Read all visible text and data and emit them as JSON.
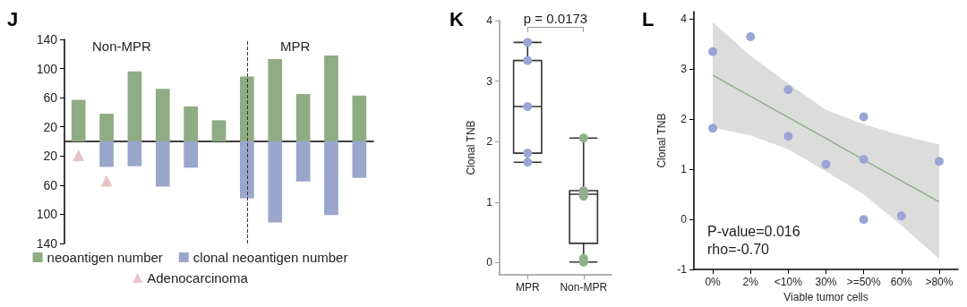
{
  "chart_data": [
    {
      "type": "bar",
      "title": "J",
      "categories": [
        null,
        null,
        null,
        null,
        null,
        null,
        null,
        null,
        null,
        null,
        null
      ],
      "stacked": true,
      "series": [
        {
          "name": "neoantigen number",
          "color": "#8fac84",
          "values": [
            57,
            38,
            96,
            72,
            48,
            29,
            89,
            113,
            65,
            118,
            63
          ]
        },
        {
          "name": "clonal neoantigen number",
          "color": "#9ba6cc",
          "values": [
            null,
            -35,
            -34,
            -62,
            -36,
            null,
            -78,
            -111,
            -55,
            -101,
            -50
          ]
        },
        {
          "name": "Adenocarcinoma",
          "type": "scatter",
          "color": "#e8c4c6",
          "values": [
            -19,
            -54,
            null,
            null,
            null,
            null,
            null,
            null,
            null,
            null,
            null
          ]
        }
      ],
      "ylim": [
        -140,
        140
      ],
      "yticks": [
        {
          "value": -140,
          "label": "140"
        },
        {
          "value": -100,
          "label": "100"
        },
        {
          "value": -60,
          "label": "60"
        },
        {
          "value": -20,
          "label": "20"
        },
        20,
        60,
        100,
        140
      ],
      "annotations": [
        "Non-MPR",
        "MPR"
      ],
      "legend": "bottom",
      "marker": "triangle",
      "grid": false
    },
    {
      "type": "box",
      "title": "K",
      "ylabel": "Clonal TNB",
      "categories": [
        "MPR",
        "Non-MPR"
      ],
      "boxes": [
        {
          "low": 1.66,
          "q1": 1.81,
          "median": 2.58,
          "q3": 3.34,
          "high": 3.64
        },
        {
          "low": 0.01,
          "q1": 0.32,
          "median": 1.13,
          "q3": 1.19,
          "high": 2.06
        }
      ],
      "series": [
        {
          "type": "scatter",
          "color": "#9aa5d4",
          "x": [
            "MPR",
            "MPR",
            "MPR",
            "MPR",
            "MPR"
          ],
          "values": [
            3.64,
            3.34,
            2.58,
            1.81,
            1.66
          ]
        },
        {
          "type": "scatter",
          "color": "#8fb08a",
          "x": [
            "Non-MPR",
            "Non-MPR",
            "Non-MPR",
            "Non-MPR",
            "Non-MPR",
            "Non-MPR"
          ],
          "values": [
            2.06,
            1.19,
            1.15,
            1.1,
            0.07,
            0.01
          ]
        }
      ],
      "ylim": [
        -0.2,
        4
      ],
      "yticks": [
        0,
        1,
        2,
        3,
        4
      ],
      "annotations": [
        "p = 0.0173"
      ],
      "marker": "circle",
      "grid": false
    },
    {
      "type": "scatter",
      "title": "L",
      "xlabel": "Viable tumor cells",
      "ylabel": "Clonal TNB",
      "categories": [
        "0%",
        "2%",
        "<10%",
        "30%",
        ">=50%",
        "60%",
        ">80%"
      ],
      "series": [
        {
          "color": "#9aa5d4",
          "x": [
            "0%",
            "0%",
            "2%",
            "<10%",
            "<10%",
            "30%",
            ">=50%",
            ">=50%",
            ">=50%",
            "60%",
            ">80%"
          ],
          "values": [
            3.35,
            1.82,
            3.65,
            2.59,
            1.66,
            1.1,
            2.05,
            1.2,
            0,
            0.07,
            1.16
          ]
        },
        {
          "type": "line",
          "marker": "none",
          "color": "#8fb08a",
          "values": [
            2.88,
            2.46,
            2.04,
            1.62,
            1.19,
            0.77,
            0.35
          ],
          "lower": [
            1.83,
            1.68,
            1.4,
            0.96,
            0.5,
            -0.12,
            -0.79
          ],
          "upper": [
            3.94,
            3.27,
            2.71,
            2.19,
            1.9,
            1.68,
            1.5
          ]
        }
      ],
      "ylim": [
        -1,
        4.15
      ],
      "yticks": [
        -1,
        0,
        1,
        2,
        3,
        4
      ],
      "annotations": [
        "P-value=0.016",
        "rho=-0.70"
      ],
      "marker": "circle",
      "grid": false
    }
  ]
}
